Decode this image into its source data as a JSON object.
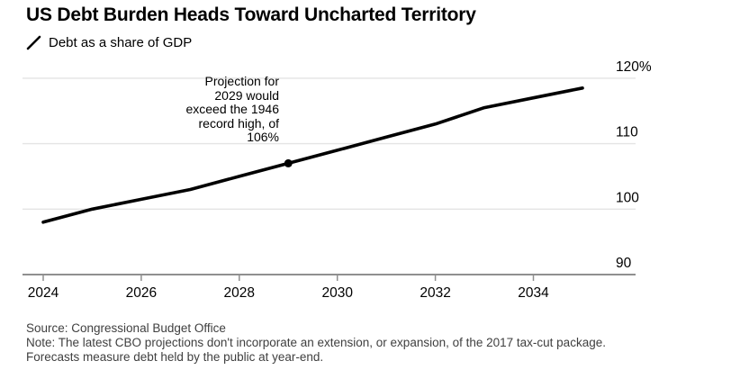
{
  "header": {
    "title": "US Debt Burden Heads Toward Uncharted Territory",
    "legend_label": "Debt as a share of GDP"
  },
  "annotation": {
    "lines": [
      "Projection for",
      "2029 would",
      "exceed the 1946",
      "record high, of",
      "106%"
    ]
  },
  "footer": {
    "source": "Source: Congressional Budget Office",
    "note": "Note: The latest CBO projections don't incorporate an extension, or expansion, of the 2017 tax-cut package. Forecasts measure debt held by the public at year-end."
  },
  "chart_data": {
    "type": "line",
    "title": "US Debt Burden Heads Toward Uncharted Territory",
    "series": [
      {
        "name": "Debt as a share of GDP",
        "x": [
          2024,
          2025,
          2026,
          2027,
          2028,
          2029,
          2030,
          2031,
          2032,
          2033,
          2034,
          2035
        ],
        "values": [
          98,
          100,
          101.5,
          103,
          105,
          107,
          109,
          111,
          113,
          115.5,
          117,
          118.5
        ]
      }
    ],
    "unit": "%",
    "xlabel": "",
    "ylabel": "",
    "xlim": [
      2023.6,
      2035.3
    ],
    "ylim": [
      90,
      123
    ],
    "x_ticks": [
      2024,
      2026,
      2028,
      2030,
      2032,
      2034
    ],
    "y_ticks": [
      90,
      100,
      110,
      120
    ],
    "y_tick_labels": [
      "90",
      "100",
      "110",
      "120%"
    ],
    "grid": "horizontal",
    "legend_position": "top-left",
    "marker_point": {
      "x": 2029,
      "value": 107,
      "label": "Projection for 2029 would exceed the 1946 record high, of 106%"
    },
    "colors": {
      "line": "#000000",
      "grid": "#e4e4e4",
      "axis": "#8f8f8f",
      "tick": "#8f8f8f",
      "label_text": "#000000",
      "footer_text": "#3f3f3f",
      "background": "#ffffff"
    }
  }
}
